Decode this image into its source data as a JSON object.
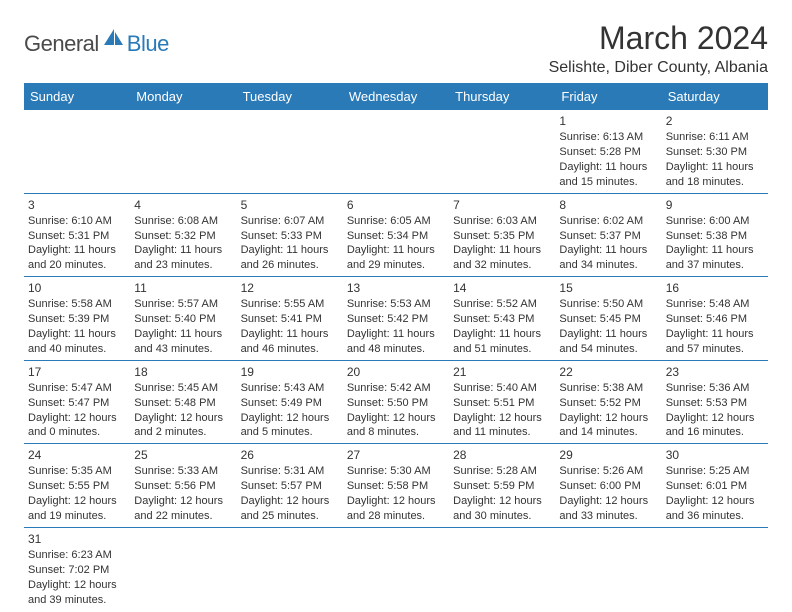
{
  "logo": {
    "text_general": "General",
    "text_blue": "Blue",
    "icon_color": "#2a7ab8"
  },
  "title": "March 2024",
  "location": "Selishte, Diber County, Albania",
  "header_bg": "#2a7ab8",
  "border_color": "#2a7ab8",
  "day_headers": [
    "Sunday",
    "Monday",
    "Tuesday",
    "Wednesday",
    "Thursday",
    "Friday",
    "Saturday"
  ],
  "weeks": [
    [
      null,
      null,
      null,
      null,
      null,
      {
        "n": "1",
        "sunrise": "Sunrise: 6:13 AM",
        "sunset": "Sunset: 5:28 PM",
        "dl1": "Daylight: 11 hours",
        "dl2": "and 15 minutes."
      },
      {
        "n": "2",
        "sunrise": "Sunrise: 6:11 AM",
        "sunset": "Sunset: 5:30 PM",
        "dl1": "Daylight: 11 hours",
        "dl2": "and 18 minutes."
      }
    ],
    [
      {
        "n": "3",
        "sunrise": "Sunrise: 6:10 AM",
        "sunset": "Sunset: 5:31 PM",
        "dl1": "Daylight: 11 hours",
        "dl2": "and 20 minutes."
      },
      {
        "n": "4",
        "sunrise": "Sunrise: 6:08 AM",
        "sunset": "Sunset: 5:32 PM",
        "dl1": "Daylight: 11 hours",
        "dl2": "and 23 minutes."
      },
      {
        "n": "5",
        "sunrise": "Sunrise: 6:07 AM",
        "sunset": "Sunset: 5:33 PM",
        "dl1": "Daylight: 11 hours",
        "dl2": "and 26 minutes."
      },
      {
        "n": "6",
        "sunrise": "Sunrise: 6:05 AM",
        "sunset": "Sunset: 5:34 PM",
        "dl1": "Daylight: 11 hours",
        "dl2": "and 29 minutes."
      },
      {
        "n": "7",
        "sunrise": "Sunrise: 6:03 AM",
        "sunset": "Sunset: 5:35 PM",
        "dl1": "Daylight: 11 hours",
        "dl2": "and 32 minutes."
      },
      {
        "n": "8",
        "sunrise": "Sunrise: 6:02 AM",
        "sunset": "Sunset: 5:37 PM",
        "dl1": "Daylight: 11 hours",
        "dl2": "and 34 minutes."
      },
      {
        "n": "9",
        "sunrise": "Sunrise: 6:00 AM",
        "sunset": "Sunset: 5:38 PM",
        "dl1": "Daylight: 11 hours",
        "dl2": "and 37 minutes."
      }
    ],
    [
      {
        "n": "10",
        "sunrise": "Sunrise: 5:58 AM",
        "sunset": "Sunset: 5:39 PM",
        "dl1": "Daylight: 11 hours",
        "dl2": "and 40 minutes."
      },
      {
        "n": "11",
        "sunrise": "Sunrise: 5:57 AM",
        "sunset": "Sunset: 5:40 PM",
        "dl1": "Daylight: 11 hours",
        "dl2": "and 43 minutes."
      },
      {
        "n": "12",
        "sunrise": "Sunrise: 5:55 AM",
        "sunset": "Sunset: 5:41 PM",
        "dl1": "Daylight: 11 hours",
        "dl2": "and 46 minutes."
      },
      {
        "n": "13",
        "sunrise": "Sunrise: 5:53 AM",
        "sunset": "Sunset: 5:42 PM",
        "dl1": "Daylight: 11 hours",
        "dl2": "and 48 minutes."
      },
      {
        "n": "14",
        "sunrise": "Sunrise: 5:52 AM",
        "sunset": "Sunset: 5:43 PM",
        "dl1": "Daylight: 11 hours",
        "dl2": "and 51 minutes."
      },
      {
        "n": "15",
        "sunrise": "Sunrise: 5:50 AM",
        "sunset": "Sunset: 5:45 PM",
        "dl1": "Daylight: 11 hours",
        "dl2": "and 54 minutes."
      },
      {
        "n": "16",
        "sunrise": "Sunrise: 5:48 AM",
        "sunset": "Sunset: 5:46 PM",
        "dl1": "Daylight: 11 hours",
        "dl2": "and 57 minutes."
      }
    ],
    [
      {
        "n": "17",
        "sunrise": "Sunrise: 5:47 AM",
        "sunset": "Sunset: 5:47 PM",
        "dl1": "Daylight: 12 hours",
        "dl2": "and 0 minutes."
      },
      {
        "n": "18",
        "sunrise": "Sunrise: 5:45 AM",
        "sunset": "Sunset: 5:48 PM",
        "dl1": "Daylight: 12 hours",
        "dl2": "and 2 minutes."
      },
      {
        "n": "19",
        "sunrise": "Sunrise: 5:43 AM",
        "sunset": "Sunset: 5:49 PM",
        "dl1": "Daylight: 12 hours",
        "dl2": "and 5 minutes."
      },
      {
        "n": "20",
        "sunrise": "Sunrise: 5:42 AM",
        "sunset": "Sunset: 5:50 PM",
        "dl1": "Daylight: 12 hours",
        "dl2": "and 8 minutes."
      },
      {
        "n": "21",
        "sunrise": "Sunrise: 5:40 AM",
        "sunset": "Sunset: 5:51 PM",
        "dl1": "Daylight: 12 hours",
        "dl2": "and 11 minutes."
      },
      {
        "n": "22",
        "sunrise": "Sunrise: 5:38 AM",
        "sunset": "Sunset: 5:52 PM",
        "dl1": "Daylight: 12 hours",
        "dl2": "and 14 minutes."
      },
      {
        "n": "23",
        "sunrise": "Sunrise: 5:36 AM",
        "sunset": "Sunset: 5:53 PM",
        "dl1": "Daylight: 12 hours",
        "dl2": "and 16 minutes."
      }
    ],
    [
      {
        "n": "24",
        "sunrise": "Sunrise: 5:35 AM",
        "sunset": "Sunset: 5:55 PM",
        "dl1": "Daylight: 12 hours",
        "dl2": "and 19 minutes."
      },
      {
        "n": "25",
        "sunrise": "Sunrise: 5:33 AM",
        "sunset": "Sunset: 5:56 PM",
        "dl1": "Daylight: 12 hours",
        "dl2": "and 22 minutes."
      },
      {
        "n": "26",
        "sunrise": "Sunrise: 5:31 AM",
        "sunset": "Sunset: 5:57 PM",
        "dl1": "Daylight: 12 hours",
        "dl2": "and 25 minutes."
      },
      {
        "n": "27",
        "sunrise": "Sunrise: 5:30 AM",
        "sunset": "Sunset: 5:58 PM",
        "dl1": "Daylight: 12 hours",
        "dl2": "and 28 minutes."
      },
      {
        "n": "28",
        "sunrise": "Sunrise: 5:28 AM",
        "sunset": "Sunset: 5:59 PM",
        "dl1": "Daylight: 12 hours",
        "dl2": "and 30 minutes."
      },
      {
        "n": "29",
        "sunrise": "Sunrise: 5:26 AM",
        "sunset": "Sunset: 6:00 PM",
        "dl1": "Daylight: 12 hours",
        "dl2": "and 33 minutes."
      },
      {
        "n": "30",
        "sunrise": "Sunrise: 5:25 AM",
        "sunset": "Sunset: 6:01 PM",
        "dl1": "Daylight: 12 hours",
        "dl2": "and 36 minutes."
      }
    ],
    [
      {
        "n": "31",
        "sunrise": "Sunrise: 6:23 AM",
        "sunset": "Sunset: 7:02 PM",
        "dl1": "Daylight: 12 hours",
        "dl2": "and 39 minutes."
      },
      null,
      null,
      null,
      null,
      null,
      null
    ]
  ]
}
